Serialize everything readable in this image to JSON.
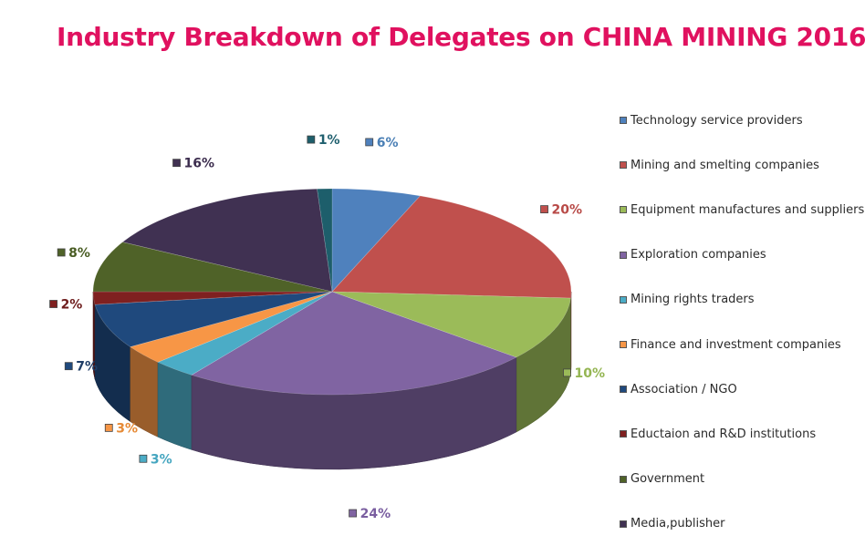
{
  "chart_data": {
    "type": "pie",
    "title": "Industry Breakdown of Delegates on CHINA MINING 2016",
    "legend_position": "right",
    "categories": [
      "Technology service providers",
      "Mining and smelting companies",
      "Equipment manufactures and suppliers",
      "Exploration companies",
      "Mining rights traders",
      "Finance and investment companies",
      "Association / NGO",
      "Eductaion and R&D institutions",
      "Government",
      "Media,publisher",
      ""
    ],
    "values": [
      6,
      20,
      10,
      24,
      3,
      3,
      7,
      2,
      8,
      16,
      1
    ],
    "labels": [
      "6%",
      "20%",
      "10%",
      "24%",
      "3%",
      "3%",
      "7%",
      "2%",
      "8%",
      "16%",
      "1%"
    ],
    "colors": [
      "#4f81bd",
      "#c0504d",
      "#9bbb59",
      "#8064a2",
      "#4bacc6",
      "#f79646",
      "#1f497d",
      "#7f2020",
      "#4f6228",
      "#403152",
      "#1d5e6b"
    ],
    "label_colors": [
      "#4a7fb5",
      "#b84a47",
      "#94b552",
      "#7a5ea0",
      "#45a6c0",
      "#e68a36",
      "#1f3d66",
      "#6e1c1c",
      "#4a5d24",
      "#3c2d4e",
      "#1f5f6e"
    ]
  }
}
